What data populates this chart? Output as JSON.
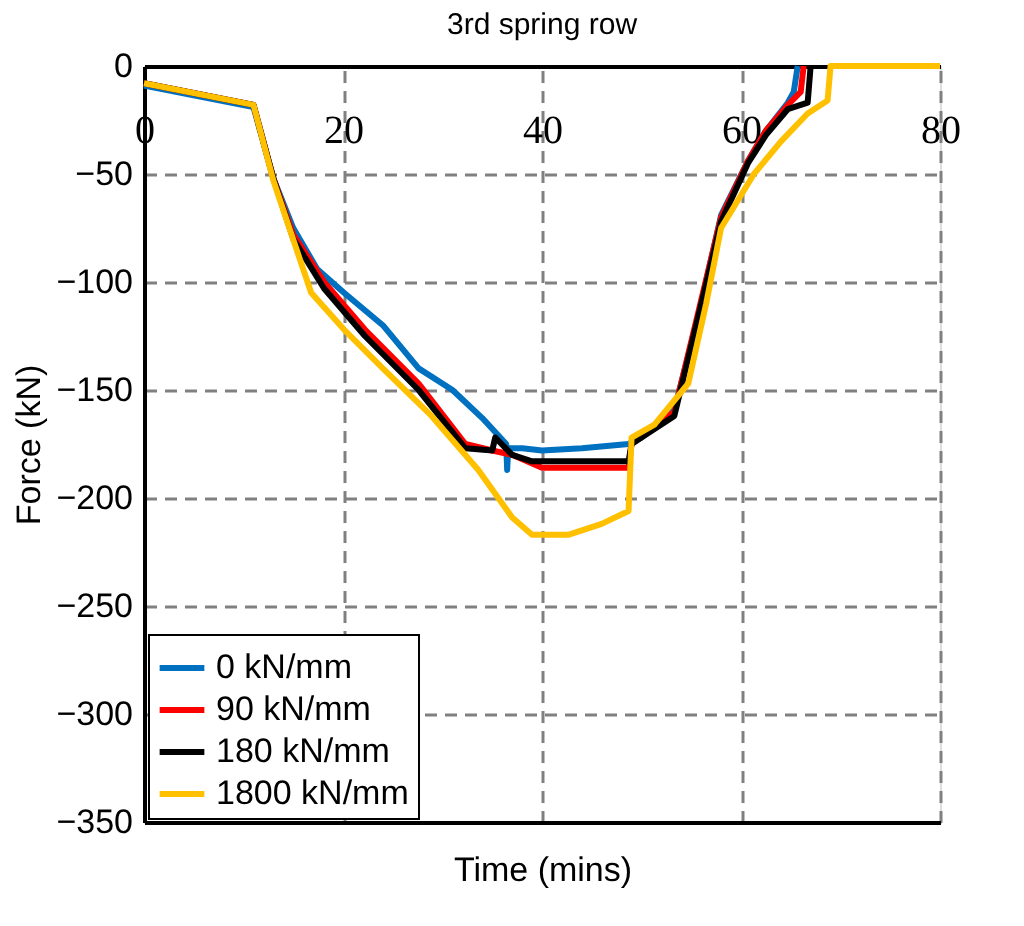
{
  "chart_data": {
    "type": "line",
    "title": "3rd spring row",
    "xlabel": "Time (mins)",
    "ylabel": "Force (kN)",
    "xlim": [
      0,
      80
    ],
    "xticks": [
      0,
      20,
      40,
      60,
      80
    ],
    "ylim": [
      -350,
      0
    ],
    "yticks": [
      -350,
      -300,
      -250,
      -200,
      -150,
      -100,
      -50,
      0
    ],
    "grid": true,
    "legend": "bottom left",
    "line_style": "solid",
    "marker": "none",
    "series": [
      {
        "name": "0 kN/mm",
        "color": "#0070c0",
        "x": [
          0,
          11,
          13,
          15,
          17.4,
          20.1,
          24,
          27.6,
          31,
          34,
          36.4,
          36.5,
          36.6,
          38,
          40,
          44,
          48.7,
          50,
          53.3,
          55.5,
          58,
          60.7,
          62.5,
          64.7,
          65.3,
          65.7
        ],
        "values": [
          -9,
          -19,
          -52,
          -75,
          -94,
          -105,
          -120,
          -140,
          -150,
          -163,
          -175,
          -187,
          -177,
          -177,
          -178,
          -177,
          -175,
          -172,
          -159,
          -120,
          -69,
          -44,
          -30,
          -17,
          -12,
          0
        ]
      },
      {
        "name": "90 kN/mm",
        "color": "#ff0000",
        "x": [
          0,
          11,
          13,
          15,
          18.1,
          22.2,
          27.6,
          32.3,
          35,
          37,
          40,
          44,
          48.7,
          49,
          53.3,
          55.5,
          58,
          60.7,
          62.5,
          64.7,
          66,
          66.3
        ],
        "values": [
          -8,
          -18,
          -52,
          -78,
          -100,
          -122,
          -147,
          -175,
          -178,
          -180,
          -186,
          -186,
          -186,
          -175,
          -160,
          -118,
          -70,
          -44,
          -30,
          -18,
          -12,
          0
        ]
      },
      {
        "name": "180 kN/mm",
        "color": "#000000",
        "x": [
          0,
          11,
          13,
          15,
          18.1,
          22.2,
          27.6,
          32.3,
          35,
          35.3,
          37,
          39,
          44,
          48.7,
          49,
          53.3,
          55.5,
          58,
          60.7,
          62.5,
          64.7,
          66.7,
          67
        ],
        "values": [
          -8,
          -18,
          -52,
          -80,
          -103,
          -125,
          -150,
          -177,
          -178,
          -172,
          -180,
          -183,
          -183,
          -183,
          -175,
          -162,
          -120,
          -72,
          -45,
          -32,
          -20,
          -17,
          0
        ]
      },
      {
        "name": "1800 kN/mm",
        "color": "#ffc000",
        "x": [
          0,
          11,
          13,
          16.8,
          20.1,
          24,
          28.9,
          33.6,
          37,
          39,
          42.7,
          46,
          48.7,
          49,
          51.3,
          54.7,
          56.5,
          58,
          61.3,
          64,
          66.7,
          68.7,
          69,
          80
        ],
        "values": [
          -8,
          -18,
          -53,
          -105,
          -122,
          -140,
          -162,
          -187,
          -209,
          -217,
          -217,
          -212,
          -206,
          -172,
          -166,
          -147,
          -110,
          -75,
          -50,
          -35,
          -22,
          -16,
          0,
          0
        ]
      }
    ]
  }
}
